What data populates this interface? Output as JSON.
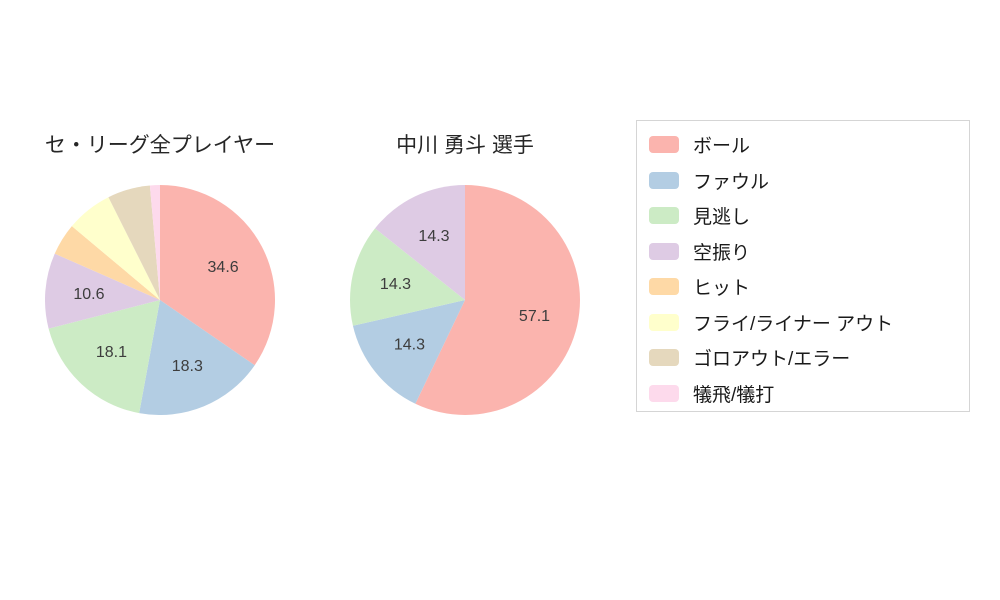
{
  "palette": [
    "#fbb4ae",
    "#b3cde3",
    "#ccebc5",
    "#decbe4",
    "#fed9a6",
    "#ffffcc",
    "#e5d8bd",
    "#fddaec"
  ],
  "chart_data": [
    {
      "type": "pie",
      "title": "セ・リーグ全プレイヤー",
      "categories": [
        "ボール",
        "ファウル",
        "見逃し",
        "空振り",
        "ヒット",
        "フライ/ライナー アウト",
        "ゴロアウト/エラー",
        "犠飛/犠打"
      ],
      "values": [
        34.6,
        18.3,
        18.1,
        10.6,
        4.5,
        6.5,
        6.0,
        1.4
      ],
      "visible_value_labels": [
        "34.6",
        "18.3",
        "18.1",
        "10.6"
      ],
      "min_label_value": 10,
      "start_angle": "top",
      "direction": "clockwise",
      "legend_position": "right"
    },
    {
      "type": "pie",
      "title": "中川 勇斗 選手",
      "categories": [
        "ボール",
        "ファウル",
        "見逃し",
        "空振り",
        "ヒット",
        "フライ/ライナー アウト",
        "ゴロアウト/エラー",
        "犠飛/犠打"
      ],
      "values": [
        57.1,
        14.3,
        14.3,
        14.3,
        0,
        0,
        0,
        0
      ],
      "visible_value_labels": [
        "57.1",
        "14.3",
        "14.3",
        "14.3"
      ],
      "min_label_value": 10,
      "start_angle": "top",
      "direction": "clockwise",
      "legend_position": "right"
    }
  ],
  "legend": {
    "items": [
      {
        "label": "ボール",
        "color": "#fbb4ae"
      },
      {
        "label": "ファウル",
        "color": "#b3cde3"
      },
      {
        "label": "見逃し",
        "color": "#ccebc5"
      },
      {
        "label": "空振り",
        "color": "#decbe4"
      },
      {
        "label": "ヒット",
        "color": "#fed9a6"
      },
      {
        "label": "フライ/ライナー アウト",
        "color": "#ffffcc"
      },
      {
        "label": "ゴロアウト/エラー",
        "color": "#e5d8bd"
      },
      {
        "label": "犠飛/犠打",
        "color": "#fddaec"
      }
    ]
  }
}
